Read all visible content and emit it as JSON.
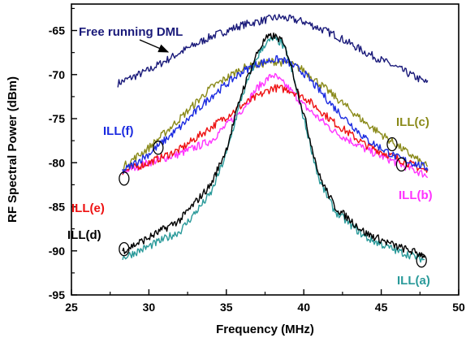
{
  "chart_data": {
    "type": "line",
    "xlabel": "Frequency (MHz)",
    "ylabel": "RF Spectral Power (dBm)",
    "xlim": [
      25,
      50
    ],
    "ylim": [
      -95,
      -62
    ],
    "xticks": [
      25,
      30,
      35,
      40,
      45,
      50
    ],
    "yticks": [
      -95,
      -90,
      -85,
      -80,
      -75,
      -70,
      -65
    ],
    "grid": false,
    "series": [
      {
        "name": "Free running DML",
        "color": "#1a1a7a",
        "x": [
          28,
          30,
          32,
          34,
          36,
          38,
          38.5,
          40,
          42,
          44,
          46,
          48
        ],
        "y": [
          -71,
          -69.5,
          -67.5,
          -65.7,
          -64.4,
          -63.6,
          -63.5,
          -64,
          -65.5,
          -67.5,
          -69.2,
          -71
        ]
      },
      {
        "name": "ILL(a)",
        "color": "#2a9a9a",
        "x": [
          28.3,
          30,
          32,
          34,
          35,
          36,
          37,
          37.5,
          38,
          38.5,
          39,
          40,
          41,
          42,
          44,
          46,
          47.8
        ],
        "y": [
          -90.8,
          -89.5,
          -87.8,
          -83.5,
          -79,
          -72.5,
          -68,
          -66.5,
          -66,
          -66.3,
          -68,
          -75,
          -82,
          -85.5,
          -88.5,
          -90,
          -91
        ]
      },
      {
        "name": "ILL(b)",
        "color": "#ff33ff",
        "x": [
          28.3,
          30,
          32,
          34,
          36,
          37,
          38,
          39,
          40,
          42,
          44,
          46,
          48
        ],
        "y": [
          -81,
          -80,
          -79,
          -77.5,
          -74,
          -71.5,
          -70,
          -71.5,
          -73.5,
          -76.5,
          -78.5,
          -80,
          -81.5
        ]
      },
      {
        "name": "ILL(c)",
        "color": "#8a8a1a",
        "x": [
          28.3,
          30,
          32,
          34,
          36,
          38,
          39,
          40,
          42,
          44,
          46,
          48
        ],
        "y": [
          -80.5,
          -78.3,
          -75,
          -71.5,
          -69.3,
          -68.5,
          -68.7,
          -69.5,
          -72.5,
          -75.5,
          -78,
          -80.5
        ]
      },
      {
        "name": "ILL(d)",
        "color": "#000000",
        "x": [
          28.3,
          30,
          32,
          34,
          35,
          36,
          37,
          37.5,
          38,
          38.5,
          39,
          40,
          41,
          42,
          44,
          46,
          47.8
        ],
        "y": [
          -90,
          -88.5,
          -86.5,
          -82.5,
          -78.5,
          -72,
          -67.5,
          -66,
          -65.6,
          -66,
          -67.8,
          -74.5,
          -81.5,
          -85,
          -88,
          -89.5,
          -90.5
        ]
      },
      {
        "name": "ILL(e)",
        "color": "#ee1111",
        "x": [
          28.3,
          30,
          32,
          34,
          36,
          38,
          39,
          40,
          42,
          44,
          46,
          48
        ],
        "y": [
          -81,
          -80,
          -78.5,
          -76,
          -73.5,
          -71.5,
          -71.7,
          -72.5,
          -75.5,
          -78,
          -79.5,
          -81
        ]
      },
      {
        "name": "ILL(f)",
        "color": "#1a2ae0",
        "x": [
          28.3,
          30,
          32,
          34,
          36,
          37,
          38,
          38.5,
          39,
          40,
          42,
          44,
          46,
          48
        ],
        "y": [
          -81,
          -79,
          -76,
          -72.5,
          -69.7,
          -68.8,
          -68.3,
          -68.3,
          -68.6,
          -69.8,
          -73.8,
          -77.3,
          -79.4,
          -80.6
        ]
      }
    ],
    "labels": [
      {
        "text": "Free running DML",
        "series": "Free running DML"
      },
      {
        "text": "ILL(f)",
        "series": "ILL(f)"
      },
      {
        "text": "ILL(c)",
        "series": "ILL(c)"
      },
      {
        "text": "ILL(e)",
        "series": "ILL(e)"
      },
      {
        "text": "ILL(b)",
        "series": "ILL(b)"
      },
      {
        "text": "ILL(d)",
        "series": "ILL(d)"
      },
      {
        "text": "ILL(a)",
        "series": "ILL(a)"
      }
    ],
    "markers": [
      {
        "series": "ILL(f)",
        "x": 30.6,
        "y": -78.3
      },
      {
        "series": "ILL(c)",
        "x": 45.7,
        "y": -77.9
      },
      {
        "series": "ILL(e)",
        "x": 28.4,
        "y": -81.8
      },
      {
        "series": "ILL(b)",
        "x": 46.3,
        "y": -80.2
      },
      {
        "series": "ILL(d)",
        "x": 28.4,
        "y": -89.8
      },
      {
        "series": "ILL(a)",
        "x": 47.6,
        "y": -91.1
      }
    ]
  }
}
